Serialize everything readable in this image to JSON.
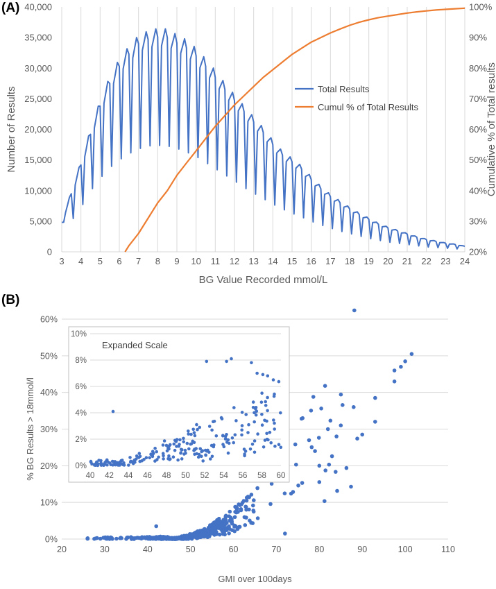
{
  "panel_a_label": "(A)",
  "panel_b_label": "(B)",
  "colors": {
    "blue": "#4472c4",
    "orange": "#ed7d31",
    "grid": "#d9d9d9",
    "text": "#595959"
  },
  "chart_data": [
    {
      "type": "line",
      "id": "A",
      "xlabel": "BG Value Recorded mmol/L",
      "ylabel": "Number of Results",
      "y2label": "Cumulative % of Total results",
      "xlim": [
        3,
        24
      ],
      "ylim": [
        0,
        40000
      ],
      "y2lim": [
        20,
        100
      ],
      "xticks": [
        3,
        4,
        5,
        6,
        7,
        8,
        9,
        10,
        11,
        12,
        13,
        14,
        15,
        16,
        17,
        18,
        19,
        20,
        21,
        22,
        23,
        24
      ],
      "yticks": [
        0,
        5000,
        10000,
        15000,
        20000,
        25000,
        30000,
        35000,
        40000
      ],
      "ytick_labels": [
        "0",
        "5,000",
        "10,000",
        "15,000",
        "20,000",
        "25,000",
        "30,000",
        "35,000",
        "40,000"
      ],
      "y2ticks": [
        20,
        30,
        40,
        50,
        60,
        70,
        80,
        90,
        100
      ],
      "y2tick_labels": [
        "20%",
        "30%",
        "40%",
        "50%",
        "60%",
        "70%",
        "80%",
        "90%",
        "100%"
      ],
      "grid": "vertical",
      "legend_position": "center-right",
      "series": [
        {
          "name": "Total Results",
          "axis": "left",
          "envelope_x": [
            3.0,
            3.5,
            4.0,
            4.5,
            5.0,
            5.5,
            6.0,
            6.5,
            7.0,
            7.5,
            8.0,
            8.5,
            9.0,
            9.5,
            10.0,
            10.5,
            11.0,
            11.5,
            12.0,
            12.5,
            13.0,
            13.5,
            14.0,
            14.5,
            15.0,
            15.5,
            16.0,
            16.5,
            17.0,
            17.5,
            18.0,
            18.5,
            19.0,
            19.5,
            20.0,
            20.5,
            21.0,
            21.5,
            22.0,
            22.5,
            23.0,
            23.5,
            24.0
          ],
          "envelope_peak": [
            4800,
            9500,
            14200,
            19200,
            23800,
            27500,
            30300,
            32300,
            34000,
            34700,
            35100,
            35000,
            34100,
            33300,
            32000,
            30300,
            28500,
            26500,
            24700,
            22900,
            21200,
            19500,
            17500,
            15800,
            14700,
            13500,
            11800,
            10300,
            9000,
            8000,
            7000,
            6100,
            5300,
            4500,
            3900,
            3400,
            2900,
            2400,
            2000,
            1700,
            1400,
            1200,
            900
          ],
          "envelope_trough": [
            4800,
            5000,
            7200,
            9900,
            12000,
            13700,
            15000,
            16000,
            16800,
            17300,
            17400,
            17300,
            16900,
            16300,
            15600,
            14600,
            13600,
            12600,
            11600,
            10500,
            9600,
            8700,
            7800,
            7000,
            6300,
            5700,
            5000,
            4400,
            3900,
            3400,
            3000,
            2600,
            2200,
            1900,
            1600,
            1400,
            1200,
            1000,
            800,
            700,
            600,
            500,
            400
          ]
        },
        {
          "name": "Cumul % of Total Results",
          "axis": "right",
          "x": [
            6.3,
            6.5,
            7.0,
            7.5,
            8.0,
            8.5,
            9.0,
            9.5,
            10.0,
            10.5,
            11.0,
            11.5,
            12.0,
            12.5,
            13.0,
            13.5,
            14.0,
            14.5,
            15.0,
            15.5,
            16.0,
            16.5,
            17.0,
            17.5,
            18.0,
            18.5,
            19.0,
            19.5,
            20.0,
            20.5,
            21.0,
            21.5,
            22.0,
            22.5,
            23.0,
            23.5,
            24.0
          ],
          "y": [
            20,
            22,
            26,
            31,
            36,
            40,
            45,
            49,
            53,
            57,
            61,
            64.5,
            68,
            71,
            74,
            77,
            79.5,
            82,
            84.5,
            86.5,
            88.5,
            90,
            91.5,
            92.8,
            94,
            95,
            95.8,
            96.5,
            97,
            97.5,
            98,
            98.4,
            98.7,
            99,
            99.2,
            99.4,
            99.6
          ]
        }
      ]
    },
    {
      "type": "scatter",
      "id": "B",
      "xlabel": "GMI over 100days",
      "ylabel": "% BG Results > 18mmol/l",
      "xlim": [
        20,
        110
      ],
      "ylim": [
        0,
        60
      ],
      "xticks": [
        20,
        30,
        40,
        50,
        60,
        70,
        80,
        90,
        100,
        110
      ],
      "yticks": [
        0,
        10,
        20,
        30,
        40,
        50,
        60
      ],
      "ytick_labels": [
        "0%",
        "10%",
        "20%",
        "30%",
        "40%",
        "50%",
        "60%"
      ],
      "grid": "horizontal",
      "notable_points": {
        "x": [
          26,
          29,
          31,
          42,
          63,
          72,
          79,
          80,
          82,
          84,
          85,
          88,
          90,
          93,
          93,
          97.5,
          97.5,
          99,
          100,
          101.5
        ],
        "y": [
          0.1,
          0.1,
          0.2,
          3.5,
          8.0,
          1.5,
          24.0,
          20.0,
          30.0,
          28.0,
          31.0,
          36.0,
          28.5,
          32.0,
          38.5,
          46.0,
          43.0,
          47.0,
          48.5,
          50.5
        ]
      },
      "generated_cloud": {
        "seed": 17,
        "count": 560,
        "x_range": [
          26,
          90
        ]
      }
    },
    {
      "type": "scatter",
      "id": "B-inset",
      "title": "Expanded Scale",
      "xlim": [
        40,
        60
      ],
      "ylim": [
        0,
        10
      ],
      "xticks": [
        40,
        42,
        44,
        46,
        48,
        50,
        52,
        54,
        56,
        58,
        60
      ],
      "yticks": [
        0,
        2,
        4,
        6,
        8,
        10
      ],
      "ytick_labels": [
        "0%",
        "2%",
        "4%",
        "6%",
        "8%",
        "10%"
      ],
      "notable_points": {
        "x": [
          42.4,
          52.2,
          54.3,
          54.8,
          56.9,
          57.5,
          58.1,
          58.6,
          59.2
        ],
        "y": [
          4.1,
          7.9,
          7.9,
          8.1,
          7.8,
          7.0,
          6.9,
          6.8,
          6.5
        ]
      },
      "generated_cloud": {
        "seed": 91,
        "count": 230
      }
    }
  ]
}
